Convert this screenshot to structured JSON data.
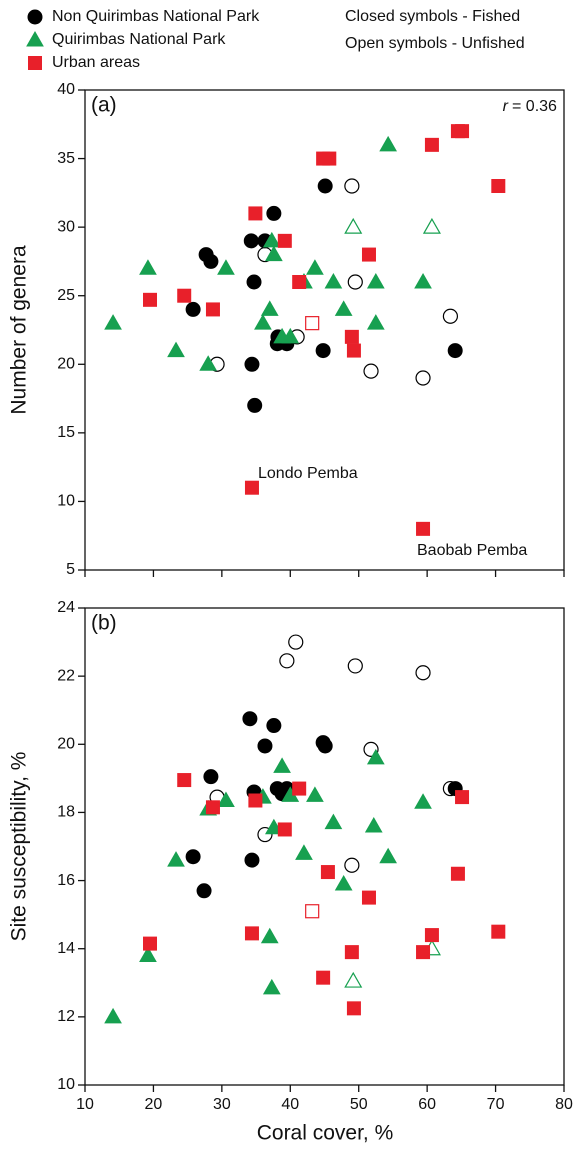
{
  "chart_data": {
    "type": "scatter",
    "series": [
      {
        "name": "Non Quirimbas National Park",
        "color": "#000000",
        "marker": "circle"
      },
      {
        "name": "Quirimbas National Park",
        "color": "#17a050",
        "marker": "triangle"
      },
      {
        "name": "Urban areas",
        "color": "#e8202a",
        "marker": "square"
      }
    ],
    "legend_notes": [
      "Closed symbols - Fished",
      "Open symbols - Unfished"
    ],
    "xlabel": "Coral cover, %",
    "xlim": [
      10,
      80
    ],
    "xticks": [
      10,
      20,
      30,
      40,
      50,
      60,
      70,
      80
    ],
    "panels": [
      {
        "label": "(a)",
        "ylabel": "Number of genera",
        "ylim": [
          5,
          40
        ],
        "yticks": [
          5,
          10,
          15,
          20,
          25,
          30,
          35,
          40
        ],
        "stat_symbol": "r",
        "stat_text": "= 0.36",
        "annotations": [
          "Londo Pemba",
          "Baobab Pemba"
        ],
        "points": [
          {
            "fished": {
              "x": [
                45.1,
                34.3,
                37.6,
                36.3,
                27.7,
                28.4,
                25.8,
                34.7,
                34.4,
                34.8,
                38.1,
                39.5,
                38.2,
                44.8,
                64.1
              ],
              "y": [
                33,
                29,
                31,
                29,
                28,
                27.5,
                24,
                26,
                20,
                17,
                21.5,
                21.5,
                22,
                21,
                21
              ]
            },
            "unfished": {
              "x": [
                49,
                36.3,
                49.5,
                29.3,
                41,
                51.8,
                63.4,
                59.4
              ],
              "y": [
                33,
                28,
                26,
                20,
                22,
                19.5,
                23.5,
                19
              ]
            }
          },
          {
            "fished": {
              "x": [
                14.1,
                19.2,
                23.3,
                28,
                30.6,
                36,
                37,
                37.3,
                37.6,
                38.8,
                40,
                42,
                43.6,
                46.3,
                47.8,
                52.5,
                52.5,
                54.3,
                59.4
              ],
              "y": [
                23,
                27,
                21,
                20,
                27,
                23,
                24,
                29,
                28,
                22,
                22,
                26,
                27,
                26,
                24,
                26,
                23,
                36,
                26
              ]
            },
            "unfished": {
              "x": [
                49.2,
                60.7
              ],
              "y": [
                30,
                30
              ]
            }
          },
          {
            "fished": {
              "x": [
                19.5,
                24.5,
                28.7,
                34.9,
                39.2,
                41.3,
                44.8,
                45.7,
                49,
                49.3,
                51.5,
                60.7,
                64.5,
                65.1,
                70.4,
                34.4,
                59.4
              ],
              "y": [
                24.7,
                25,
                24,
                31,
                29,
                26,
                35,
                35,
                22,
                21,
                28,
                36,
                37,
                37,
                33,
                11,
                8
              ]
            },
            "unfished": {
              "x": [
                43.2
              ],
              "y": [
                23
              ]
            }
          }
        ]
      },
      {
        "label": "(b)",
        "ylabel": "Site susceptibility, %",
        "ylim": [
          10,
          24
        ],
        "yticks": [
          10,
          12,
          14,
          16,
          18,
          20,
          22,
          24
        ],
        "points": [
          {
            "fished": {
              "x": [
                34.1,
                37.6,
                36.3,
                44.8,
                45.1,
                28.4,
                34.7,
                38.1,
                38.8,
                39.5,
                25.8,
                27.4,
                34.4,
                64.1
              ],
              "y": [
                20.75,
                20.55,
                19.95,
                20.05,
                19.95,
                19.05,
                18.6,
                18.7,
                18.55,
                18.7,
                16.7,
                15.7,
                16.6,
                18.7
              ]
            },
            "unfished": {
              "x": [
                40.8,
                39.5,
                49.5,
                59.4,
                51.8,
                29.3,
                36.3,
                49,
                63.4
              ],
              "y": [
                23,
                22.45,
                22.3,
                22.1,
                19.85,
                18.45,
                17.35,
                16.45,
                18.7
              ]
            }
          },
          {
            "fished": {
              "x": [
                14.1,
                19.2,
                23.3,
                28,
                30.6,
                36,
                37,
                37.3,
                37.6,
                38.8,
                40,
                42,
                43.6,
                46.3,
                47.8,
                52.5,
                52.2,
                54.3,
                59.4
              ],
              "y": [
                12,
                13.8,
                16.6,
                18.1,
                18.35,
                18.45,
                14.35,
                12.85,
                17.55,
                19.35,
                18.5,
                16.8,
                18.5,
                17.7,
                15.9,
                19.6,
                17.6,
                16.7,
                18.3
              ]
            },
            "unfished": {
              "x": [
                49.2,
                60.7
              ],
              "y": [
                13.05,
                14
              ]
            }
          },
          {
            "fished": {
              "x": [
                19.5,
                24.5,
                28.7,
                34.4,
                34.9,
                39.2,
                41.3,
                45.5,
                44.8,
                49,
                49.3,
                51.5,
                60.7,
                59.4,
                64.5,
                65.1,
                70.4
              ],
              "y": [
                14.15,
                18.95,
                18.15,
                14.45,
                18.35,
                17.5,
                18.7,
                16.25,
                13.15,
                13.9,
                12.25,
                15.5,
                14.4,
                13.9,
                16.2,
                18.45,
                14.5
              ]
            },
            "unfished": {
              "x": [
                43.2
              ],
              "y": [
                15.1
              ]
            }
          }
        ]
      }
    ]
  }
}
